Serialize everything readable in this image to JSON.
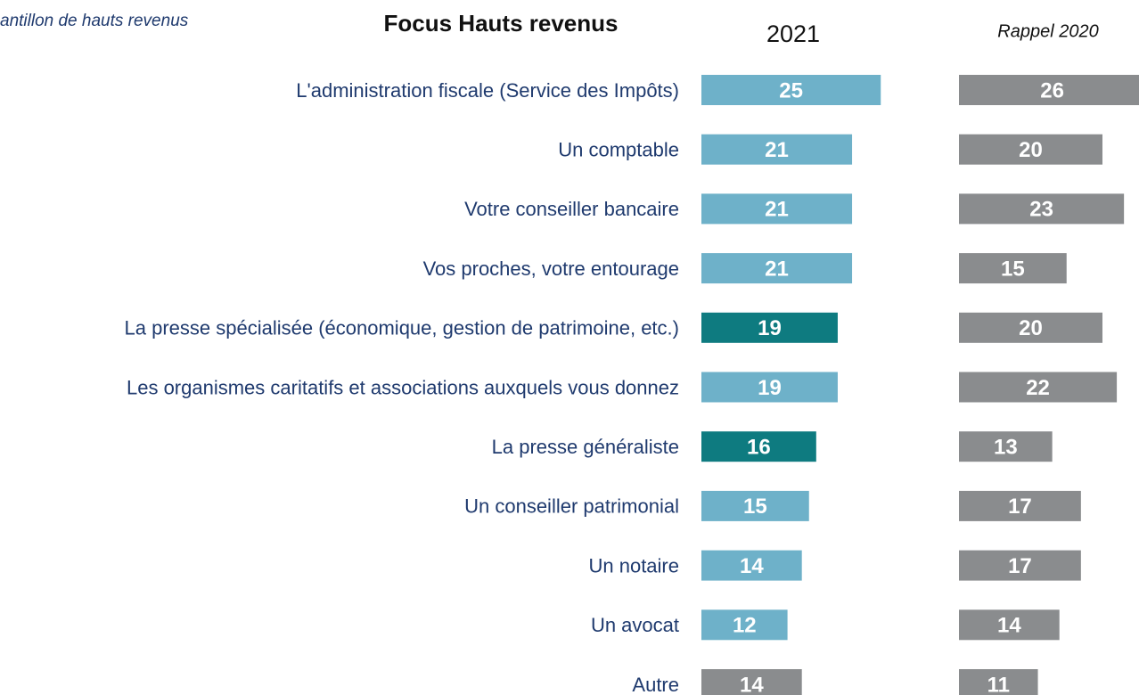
{
  "chart_data": {
    "type": "bar",
    "orientation": "horizontal",
    "subtitle": "antillon de hauts revenus",
    "title": "Focus Hauts revenus",
    "categories": [
      "L'administration fiscale (Service des Impôts)",
      "Un comptable",
      "Votre conseiller bancaire",
      "Vos proches, votre entourage",
      "La presse spécialisée (économique, gestion de patrimoine, etc.)",
      "Les organismes caritatifs et associations auxquels vous donnez",
      "La presse généraliste",
      "Un conseiller patrimonial",
      "Un notaire",
      "Un avocat",
      "Autre"
    ],
    "series": [
      {
        "name": "2021",
        "colors": [
          "#6eb1c9",
          "#6eb1c9",
          "#6eb1c9",
          "#6eb1c9",
          "#0e7b80",
          "#6eb1c9",
          "#0e7b80",
          "#6eb1c9",
          "#6eb1c9",
          "#6eb1c9",
          "#8a8c8e"
        ],
        "values": [
          25,
          21,
          21,
          21,
          19,
          19,
          16,
          15,
          14,
          12,
          14
        ]
      },
      {
        "name": "Rappel 2020",
        "color": "#8a8c8e",
        "values": [
          26,
          20,
          23,
          15,
          20,
          22,
          13,
          17,
          17,
          14,
          11
        ]
      }
    ]
  }
}
